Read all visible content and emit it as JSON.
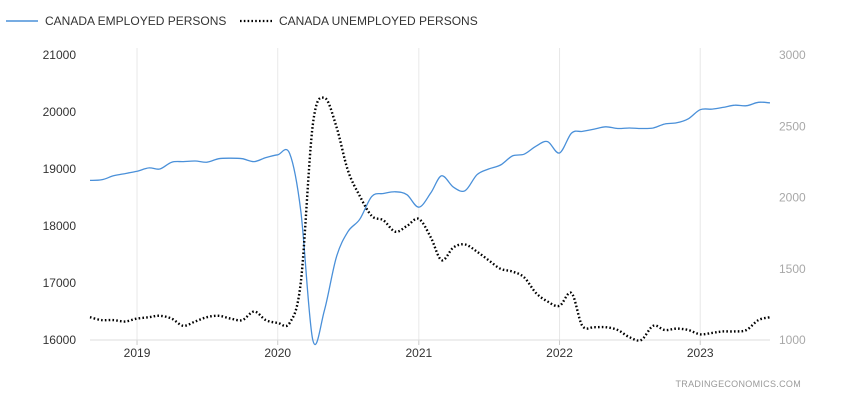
{
  "chart_data": {
    "type": "line",
    "title": "",
    "watermark": "TRADINGECONOMICS.COM",
    "x_range": [
      "2018-09-01",
      "2023-07-01"
    ],
    "x_ticks": [
      "2019",
      "2020",
      "2021",
      "2022",
      "2023"
    ],
    "y_left": {
      "min": 16000,
      "max": 21000,
      "ticks": [
        "16000",
        "17000",
        "18000",
        "19000",
        "20000",
        "21000"
      ]
    },
    "y_right": {
      "min": 1000,
      "max": 3000,
      "ticks": [
        "1000",
        "1500",
        "2000",
        "2500",
        "3000"
      ]
    },
    "grid": "vertical",
    "legend_position": "top-left",
    "colors": {
      "employed": "#4a90d9",
      "unemployed": "#000000",
      "grid": "#e8e8e8"
    },
    "series": [
      {
        "name": "CANADA EMPLOYED PERSONS",
        "axis": "left",
        "style": "solid",
        "points": [
          [
            "2018-09-01",
            18800
          ],
          [
            "2018-10-01",
            18810
          ],
          [
            "2018-11-01",
            18880
          ],
          [
            "2018-12-01",
            18920
          ],
          [
            "2019-01-01",
            18960
          ],
          [
            "2019-02-01",
            19020
          ],
          [
            "2019-03-01",
            19000
          ],
          [
            "2019-04-01",
            19120
          ],
          [
            "2019-05-01",
            19130
          ],
          [
            "2019-06-01",
            19140
          ],
          [
            "2019-07-01",
            19120
          ],
          [
            "2019-08-01",
            19180
          ],
          [
            "2019-09-01",
            19190
          ],
          [
            "2019-10-01",
            19180
          ],
          [
            "2019-11-01",
            19130
          ],
          [
            "2019-12-01",
            19200
          ],
          [
            "2020-01-01",
            19250
          ],
          [
            "2020-02-01",
            19270
          ],
          [
            "2020-03-01",
            18250
          ],
          [
            "2020-04-01",
            16000
          ],
          [
            "2020-05-01",
            16520
          ],
          [
            "2020-06-01",
            17450
          ],
          [
            "2020-07-01",
            17900
          ],
          [
            "2020-08-01",
            18120
          ],
          [
            "2020-09-01",
            18520
          ],
          [
            "2020-10-01",
            18570
          ],
          [
            "2020-11-01",
            18600
          ],
          [
            "2020-12-01",
            18550
          ],
          [
            "2021-01-01",
            18330
          ],
          [
            "2021-02-01",
            18580
          ],
          [
            "2021-03-01",
            18880
          ],
          [
            "2021-04-01",
            18680
          ],
          [
            "2021-05-01",
            18620
          ],
          [
            "2021-06-01",
            18900
          ],
          [
            "2021-07-01",
            19000
          ],
          [
            "2021-08-01",
            19070
          ],
          [
            "2021-09-01",
            19230
          ],
          [
            "2021-10-01",
            19260
          ],
          [
            "2021-11-01",
            19400
          ],
          [
            "2021-12-01",
            19480
          ],
          [
            "2022-01-01",
            19280
          ],
          [
            "2022-02-01",
            19630
          ],
          [
            "2022-03-01",
            19660
          ],
          [
            "2022-04-01",
            19700
          ],
          [
            "2022-05-01",
            19740
          ],
          [
            "2022-06-01",
            19710
          ],
          [
            "2022-07-01",
            19720
          ],
          [
            "2022-08-01",
            19710
          ],
          [
            "2022-09-01",
            19720
          ],
          [
            "2022-10-01",
            19790
          ],
          [
            "2022-11-01",
            19810
          ],
          [
            "2022-12-01",
            19880
          ],
          [
            "2023-01-01",
            20040
          ],
          [
            "2023-02-01",
            20050
          ],
          [
            "2023-03-01",
            20080
          ],
          [
            "2023-04-01",
            20120
          ],
          [
            "2023-05-01",
            20110
          ],
          [
            "2023-06-01",
            20170
          ],
          [
            "2023-07-01",
            20160
          ]
        ]
      },
      {
        "name": "CANADA UNEMPLOYED PERSONS",
        "axis": "right",
        "style": "dotted",
        "points": [
          [
            "2018-09-01",
            1160
          ],
          [
            "2018-10-01",
            1140
          ],
          [
            "2018-11-01",
            1140
          ],
          [
            "2018-12-01",
            1130
          ],
          [
            "2019-01-01",
            1150
          ],
          [
            "2019-02-01",
            1160
          ],
          [
            "2019-03-01",
            1170
          ],
          [
            "2019-04-01",
            1150
          ],
          [
            "2019-05-01",
            1100
          ],
          [
            "2019-06-01",
            1130
          ],
          [
            "2019-07-01",
            1160
          ],
          [
            "2019-08-01",
            1170
          ],
          [
            "2019-09-01",
            1150
          ],
          [
            "2019-10-01",
            1140
          ],
          [
            "2019-11-01",
            1200
          ],
          [
            "2019-12-01",
            1140
          ],
          [
            "2020-01-01",
            1120
          ],
          [
            "2020-02-01",
            1120
          ],
          [
            "2020-03-01",
            1410
          ],
          [
            "2020-04-01",
            2510
          ],
          [
            "2020-05-01",
            2700
          ],
          [
            "2020-06-01",
            2500
          ],
          [
            "2020-07-01",
            2190
          ],
          [
            "2020-08-01",
            2010
          ],
          [
            "2020-09-01",
            1870
          ],
          [
            "2020-10-01",
            1840
          ],
          [
            "2020-11-01",
            1760
          ],
          [
            "2020-12-01",
            1800
          ],
          [
            "2021-01-01",
            1850
          ],
          [
            "2021-02-01",
            1720
          ],
          [
            "2021-03-01",
            1560
          ],
          [
            "2021-04-01",
            1650
          ],
          [
            "2021-05-01",
            1670
          ],
          [
            "2021-06-01",
            1620
          ],
          [
            "2021-07-01",
            1560
          ],
          [
            "2021-08-01",
            1500
          ],
          [
            "2021-09-01",
            1480
          ],
          [
            "2021-10-01",
            1440
          ],
          [
            "2021-11-01",
            1330
          ],
          [
            "2021-12-01",
            1270
          ],
          [
            "2022-01-01",
            1240
          ],
          [
            "2022-02-01",
            1330
          ],
          [
            "2022-03-01",
            1100
          ],
          [
            "2022-04-01",
            1090
          ],
          [
            "2022-05-01",
            1090
          ],
          [
            "2022-06-01",
            1070
          ],
          [
            "2022-07-01",
            1020
          ],
          [
            "2022-08-01",
            1000
          ],
          [
            "2022-09-01",
            1100
          ],
          [
            "2022-10-01",
            1070
          ],
          [
            "2022-11-01",
            1080
          ],
          [
            "2022-12-01",
            1070
          ],
          [
            "2023-01-01",
            1040
          ],
          [
            "2023-02-01",
            1050
          ],
          [
            "2023-03-01",
            1060
          ],
          [
            "2023-04-01",
            1060
          ],
          [
            "2023-05-01",
            1070
          ],
          [
            "2023-06-01",
            1140
          ],
          [
            "2023-07-01",
            1160
          ]
        ]
      }
    ]
  }
}
